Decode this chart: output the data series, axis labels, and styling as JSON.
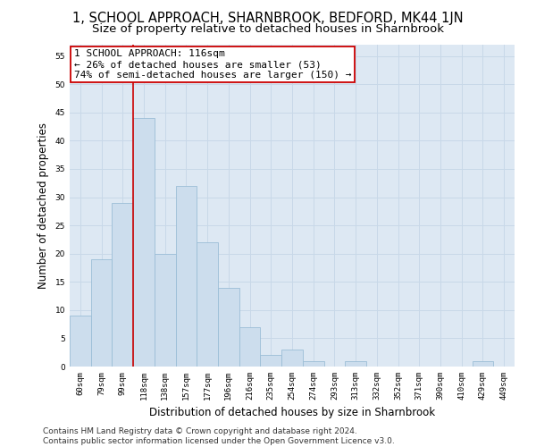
{
  "title": "1, SCHOOL APPROACH, SHARNBROOK, BEDFORD, MK44 1JN",
  "subtitle": "Size of property relative to detached houses in Sharnbrook",
  "xlabel": "Distribution of detached houses by size in Sharnbrook",
  "ylabel": "Number of detached properties",
  "categories": [
    "60sqm",
    "79sqm",
    "99sqm",
    "118sqm",
    "138sqm",
    "157sqm",
    "177sqm",
    "196sqm",
    "216sqm",
    "235sqm",
    "254sqm",
    "274sqm",
    "293sqm",
    "313sqm",
    "332sqm",
    "352sqm",
    "371sqm",
    "390sqm",
    "410sqm",
    "429sqm",
    "449sqm"
  ],
  "values": [
    9,
    19,
    29,
    44,
    20,
    32,
    22,
    14,
    7,
    2,
    3,
    1,
    0,
    1,
    0,
    0,
    0,
    0,
    0,
    1,
    0
  ],
  "bar_color": "#ccdded",
  "bar_edge_color": "#9bbdd6",
  "bar_width": 1.0,
  "vline_color": "#cc0000",
  "vline_x": 2.5,
  "annotation_text": "1 SCHOOL APPROACH: 116sqm\n← 26% of detached houses are smaller (53)\n74% of semi-detached houses are larger (150) →",
  "annotation_box_facecolor": "#ffffff",
  "annotation_box_edgecolor": "#cc0000",
  "ylim": [
    0,
    57
  ],
  "yticks": [
    0,
    5,
    10,
    15,
    20,
    25,
    30,
    35,
    40,
    45,
    50,
    55
  ],
  "grid_color": "#c8d8e8",
  "bg_color": "#dde8f3",
  "footer": "Contains HM Land Registry data © Crown copyright and database right 2024.\nContains public sector information licensed under the Open Government Licence v3.0.",
  "title_fontsize": 10.5,
  "subtitle_fontsize": 9.5,
  "xlabel_fontsize": 8.5,
  "ylabel_fontsize": 8.5,
  "tick_fontsize": 6.5,
  "annotation_fontsize": 8,
  "footer_fontsize": 6.5
}
